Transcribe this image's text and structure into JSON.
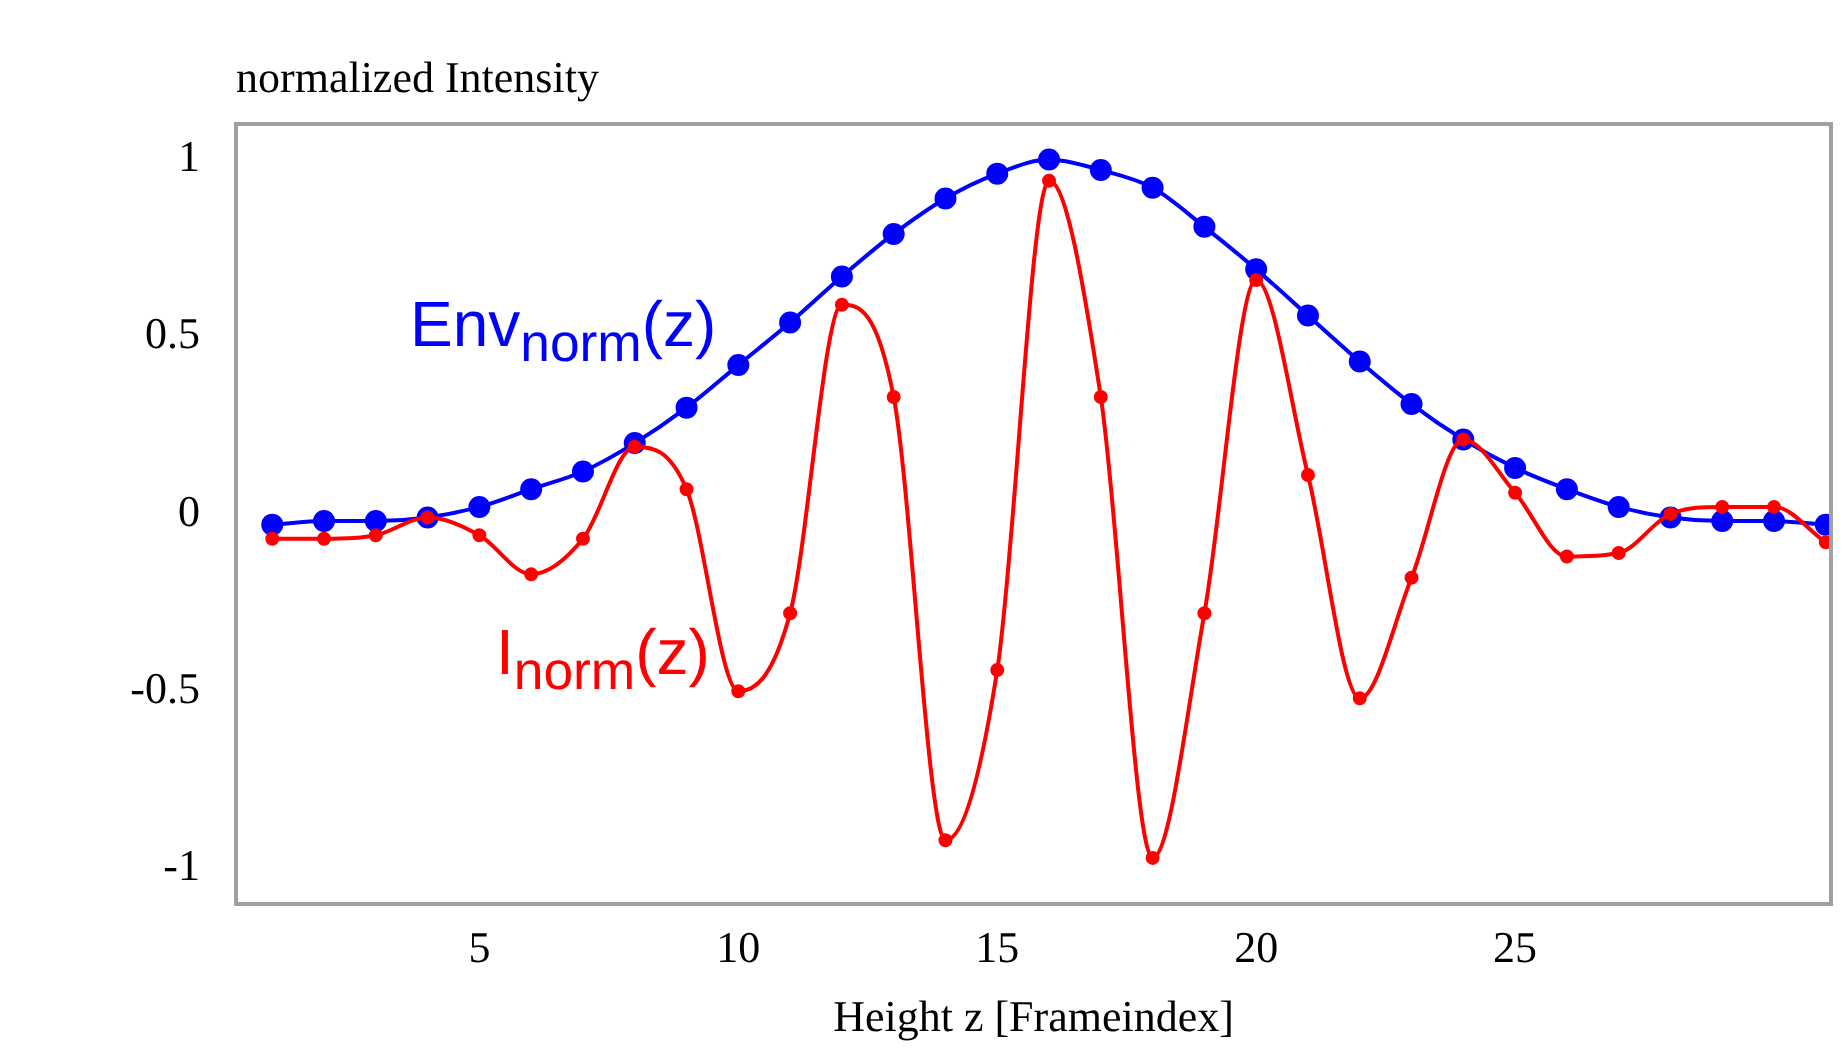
{
  "chart_data": {
    "type": "line",
    "xlabel": "Height z [Frameindex]",
    "ylabel": "normalized Intensity",
    "x": [
      1,
      2,
      3,
      4,
      5,
      6,
      7,
      8,
      9,
      10,
      11,
      12,
      13,
      14,
      15,
      16,
      17,
      18,
      19,
      20,
      21,
      22,
      23,
      24,
      25,
      26,
      27,
      28,
      29,
      30,
      31
    ],
    "series": [
      {
        "name": "Env$_{norm}$(z)",
        "color": "#0000ff",
        "values": [
          -0.03,
          -0.02,
          -0.02,
          -0.01,
          0.02,
          0.07,
          0.12,
          0.2,
          0.3,
          0.42,
          0.54,
          0.67,
          0.79,
          0.89,
          0.96,
          1.0,
          0.97,
          0.92,
          0.81,
          0.69,
          0.56,
          0.43,
          0.31,
          0.21,
          0.13,
          0.07,
          0.02,
          -0.01,
          -0.02,
          -0.02,
          -0.03
        ]
      },
      {
        "name": "I$_{norm}$(z)",
        "color": "#ff0000",
        "values": [
          -0.07,
          -0.07,
          -0.06,
          -0.01,
          -0.06,
          -0.17,
          -0.07,
          0.19,
          0.07,
          -0.5,
          -0.28,
          0.59,
          0.33,
          -0.92,
          -0.44,
          0.94,
          0.33,
          -0.97,
          -0.28,
          0.66,
          0.11,
          -0.52,
          -0.18,
          0.21,
          0.06,
          -0.12,
          -0.11,
          0.0,
          0.02,
          0.02,
          -0.08
        ]
      }
    ],
    "xlim": [
      0.3,
      31.1
    ],
    "ylim": [
      -1.1,
      1.1
    ],
    "xticks": [
      5,
      10,
      15,
      20,
      25
    ],
    "yticks": [
      -1,
      -0.5,
      0,
      0.5,
      1
    ],
    "grid": false,
    "legend": false,
    "marker": "circle",
    "line_style": "solid"
  }
}
